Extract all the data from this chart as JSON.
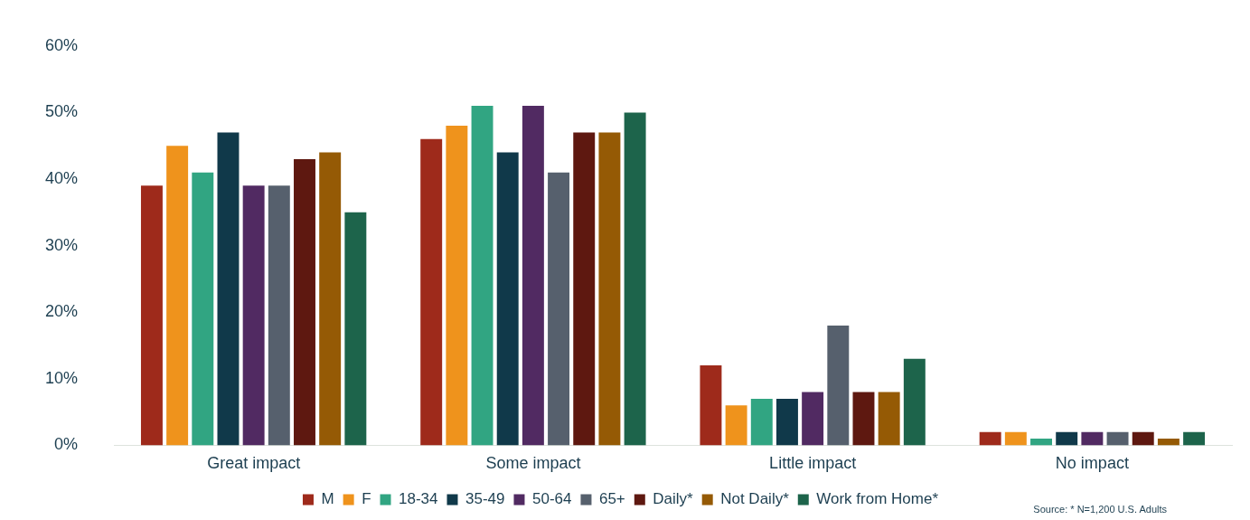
{
  "chart_data": {
    "type": "bar",
    "categories": [
      "Great impact",
      "Some impact",
      "Little impact",
      "No impact"
    ],
    "series": [
      {
        "name": "M",
        "color": "#9e2a1b",
        "values": [
          39,
          46,
          12,
          2
        ]
      },
      {
        "name": "F",
        "color": "#ef931c",
        "values": [
          45,
          48,
          6,
          2
        ]
      },
      {
        "name": "18-34",
        "color": "#31a582",
        "values": [
          41,
          51,
          7,
          1
        ]
      },
      {
        "name": "35-49",
        "color": "#10394a",
        "values": [
          47,
          44,
          7,
          2
        ]
      },
      {
        "name": "50-64",
        "color": "#512a62",
        "values": [
          39,
          51,
          8,
          2
        ]
      },
      {
        "name": "65+",
        "color": "#56606d",
        "values": [
          39,
          41,
          18,
          2
        ]
      },
      {
        "name": "Daily*",
        "color": "#5e1810",
        "values": [
          43,
          47,
          8,
          2
        ]
      },
      {
        "name": "Not Daily*",
        "color": "#955a05",
        "values": [
          44,
          47,
          8,
          1
        ]
      },
      {
        "name": "Work from Home*",
        "color": "#1d644b",
        "values": [
          35,
          50,
          13,
          2
        ]
      }
    ],
    "ylim": [
      0,
      60
    ],
    "yticks": [
      {
        "value": 0,
        "label": "0%"
      },
      {
        "value": 10,
        "label": "10%"
      },
      {
        "value": 20,
        "label": "20%"
      },
      {
        "value": 30,
        "label": "30%"
      },
      {
        "value": 40,
        "label": "40%"
      },
      {
        "value": 50,
        "label": "50%"
      },
      {
        "value": 60,
        "label": "60%"
      }
    ],
    "grid": false,
    "legend": "bottom",
    "annotations": [
      "Source: * N=1,200 U.S. Adults"
    ]
  }
}
